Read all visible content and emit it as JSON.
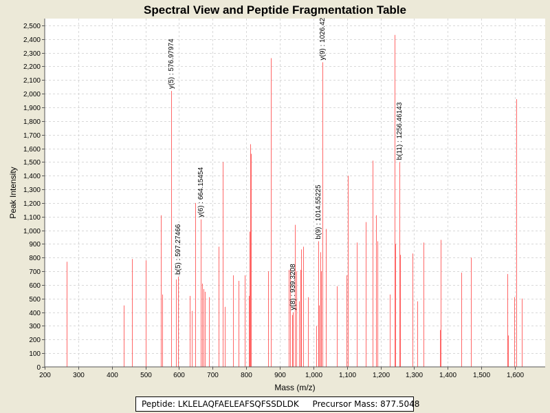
{
  "chart_data": {
    "type": "bar",
    "title": "Spectral View and Peptide Fragmentation Table",
    "xlabel": "Mass (m/z)",
    "ylabel": "Peak Intensity",
    "xlim": [
      200,
      1690
    ],
    "ylim": [
      0,
      2550
    ],
    "xticks": [
      200,
      300,
      400,
      500,
      600,
      700,
      800,
      900,
      1000,
      1100,
      1200,
      1300,
      1400,
      1500,
      1600
    ],
    "xtick_labels": [
      "200",
      "300",
      "400",
      "500",
      "600",
      "700",
      "800",
      "900",
      "1,000",
      "1,100",
      "1,200",
      "1,300",
      "1,400",
      "1,500",
      "1,600"
    ],
    "yticks": [
      0,
      100,
      200,
      300,
      400,
      500,
      600,
      700,
      800,
      900,
      1000,
      1100,
      1200,
      1300,
      1400,
      1500,
      1600,
      1700,
      1800,
      1900,
      2000,
      2100,
      2200,
      2300,
      2400,
      2500
    ],
    "ytick_labels": [
      "0",
      "100",
      "200",
      "300",
      "400",
      "500",
      "600",
      "700",
      "800",
      "900",
      "1,000",
      "1,100",
      "1,200",
      "1,300",
      "1,400",
      "1,500",
      "1,600",
      "1,700",
      "1,800",
      "1,900",
      "2,000",
      "2,100",
      "2,200",
      "2,300",
      "2,400",
      "2,500"
    ],
    "grid": true,
    "peak_color": "#FF6666",
    "peaks": [
      {
        "mz": 266,
        "intensity": 770
      },
      {
        "mz": 435,
        "intensity": 450
      },
      {
        "mz": 460,
        "intensity": 790
      },
      {
        "mz": 500,
        "intensity": 780
      },
      {
        "mz": 545,
        "intensity": 1110
      },
      {
        "mz": 550,
        "intensity": 530
      },
      {
        "mz": 576.98,
        "intensity": 2020
      },
      {
        "mz": 590,
        "intensity": 640
      },
      {
        "mz": 597.27,
        "intensity": 660
      },
      {
        "mz": 632,
        "intensity": 520
      },
      {
        "mz": 637,
        "intensity": 410
      },
      {
        "mz": 648,
        "intensity": 1200
      },
      {
        "mz": 664.15,
        "intensity": 1080
      },
      {
        "mz": 668,
        "intensity": 610
      },
      {
        "mz": 672,
        "intensity": 570
      },
      {
        "mz": 676,
        "intensity": 550
      },
      {
        "mz": 690,
        "intensity": 510
      },
      {
        "mz": 718,
        "intensity": 880
      },
      {
        "mz": 731,
        "intensity": 1500
      },
      {
        "mz": 737,
        "intensity": 440
      },
      {
        "mz": 760,
        "intensity": 670
      },
      {
        "mz": 778,
        "intensity": 630
      },
      {
        "mz": 796,
        "intensity": 670
      },
      {
        "mz": 808,
        "intensity": 520
      },
      {
        "mz": 810,
        "intensity": 990
      },
      {
        "mz": 812,
        "intensity": 1630
      },
      {
        "mz": 814,
        "intensity": 1560
      },
      {
        "mz": 866,
        "intensity": 700
      },
      {
        "mz": 873,
        "intensity": 2260
      },
      {
        "mz": 926,
        "intensity": 710
      },
      {
        "mz": 931,
        "intensity": 720
      },
      {
        "mz": 936,
        "intensity": 380
      },
      {
        "mz": 939.32,
        "intensity": 400
      },
      {
        "mz": 945,
        "intensity": 1040
      },
      {
        "mz": 950,
        "intensity": 700
      },
      {
        "mz": 958,
        "intensity": 480
      },
      {
        "mz": 961,
        "intensity": 710
      },
      {
        "mz": 964,
        "intensity": 860
      },
      {
        "mz": 969,
        "intensity": 880
      },
      {
        "mz": 983,
        "intensity": 510
      },
      {
        "mz": 1008,
        "intensity": 300
      },
      {
        "mz": 1014.55,
        "intensity": 920
      },
      {
        "mz": 1016,
        "intensity": 450
      },
      {
        "mz": 1020,
        "intensity": 840
      },
      {
        "mz": 1022,
        "intensity": 700
      },
      {
        "mz": 1026.42,
        "intensity": 2230
      },
      {
        "mz": 1038,
        "intensity": 1010
      },
      {
        "mz": 1070,
        "intensity": 590
      },
      {
        "mz": 1098,
        "intensity": 670
      },
      {
        "mz": 1103,
        "intensity": 1400
      },
      {
        "mz": 1130,
        "intensity": 910
      },
      {
        "mz": 1155,
        "intensity": 1060
      },
      {
        "mz": 1177,
        "intensity": 1510
      },
      {
        "mz": 1187,
        "intensity": 1110
      },
      {
        "mz": 1190,
        "intensity": 920
      },
      {
        "mz": 1228,
        "intensity": 530
      },
      {
        "mz": 1242,
        "intensity": 2430
      },
      {
        "mz": 1244,
        "intensity": 900
      },
      {
        "mz": 1256.46,
        "intensity": 1500
      },
      {
        "mz": 1259,
        "intensity": 820
      },
      {
        "mz": 1294,
        "intensity": 830
      },
      {
        "mz": 1310,
        "intensity": 480
      },
      {
        "mz": 1328,
        "intensity": 910
      },
      {
        "mz": 1376,
        "intensity": 270
      },
      {
        "mz": 1379,
        "intensity": 930
      },
      {
        "mz": 1440,
        "intensity": 690
      },
      {
        "mz": 1469,
        "intensity": 800
      },
      {
        "mz": 1578,
        "intensity": 680
      },
      {
        "mz": 1579,
        "intensity": 230
      },
      {
        "mz": 1598,
        "intensity": 510
      },
      {
        "mz": 1605,
        "intensity": 1960
      },
      {
        "mz": 1620,
        "intensity": 500
      }
    ],
    "annotations": [
      {
        "label": "y(5) : 576.97974",
        "mz": 576.98,
        "intensity": 2020
      },
      {
        "label": "b(5) : 597.27466",
        "mz": 597.27,
        "intensity": 660
      },
      {
        "label": "y(6) : 664.15454",
        "mz": 664.15,
        "intensity": 1080
      },
      {
        "label": "y(8) : 939.3208",
        "mz": 939.32,
        "intensity": 400
      },
      {
        "label": "b(9) : 1014.55225",
        "mz": 1014.55,
        "intensity": 920
      },
      {
        "label": "y(9) : 1026.42",
        "mz": 1026.42,
        "intensity": 2230
      },
      {
        "label": "b(11) : 1256.46143",
        "mz": 1256.46,
        "intensity": 1500
      }
    ]
  },
  "footer": {
    "peptide": "Peptide: LKLELAQFAELEAFSQFSSDLDK",
    "precursor": "Precursor Mass: 877.5048"
  }
}
